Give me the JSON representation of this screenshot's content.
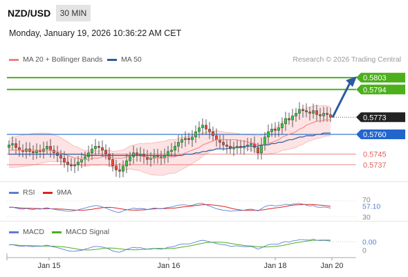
{
  "header": {
    "symbol": "NZD/USD",
    "timeframe": "30 MIN",
    "datetime": "Monday, January 19, 2026 10:36:22 AM CET",
    "source": "Research © 2026 Trading Central"
  },
  "legend": {
    "bollinger": "MA 20 + Bollinger Bands",
    "ma50": "MA 50",
    "rsi": "RSI",
    "rsi_ma": "9MA",
    "macd": "MACD",
    "macd_signal": "MACD Signal"
  },
  "colors": {
    "up": "#2ecc40",
    "down": "#e74c3c",
    "bollinger": "#f08080",
    "ma50": "#2c5aa0",
    "target": "#4caf1c",
    "pivot": "#2266cc",
    "support": "#e06060",
    "arrow": "#2c5aa0"
  },
  "chart_data": {
    "type": "candlestick",
    "x_labels": [
      "Jan 15",
      "Jan 16",
      "Jan 18",
      "Jan 20"
    ],
    "price_range": [
      0.5728,
      0.5812
    ],
    "levels": [
      {
        "value": 0.5803,
        "label": "0.5803",
        "kind": "target"
      },
      {
        "value": 0.5794,
        "label": "0.5794",
        "kind": "target"
      },
      {
        "value": 0.5773,
        "label": "0.5773",
        "kind": "last"
      },
      {
        "value": 0.576,
        "label": "0.5760",
        "kind": "pivot"
      },
      {
        "value": 0.5745,
        "label": "0.5745",
        "kind": "support"
      },
      {
        "value": 0.5737,
        "label": "0.5737",
        "kind": "support"
      }
    ],
    "close": [
      0.5752,
      0.5753,
      0.575,
      0.5748,
      0.5747,
      0.5749,
      0.5747,
      0.5746,
      0.5748,
      0.5747,
      0.5749,
      0.5751,
      0.5748,
      0.5746,
      0.5744,
      0.5742,
      0.5739,
      0.5737,
      0.5736,
      0.5737,
      0.5739,
      0.5741,
      0.5743,
      0.5746,
      0.5749,
      0.5751,
      0.575,
      0.5748,
      0.5745,
      0.5741,
      0.5736,
      0.5733,
      0.5732,
      0.5736,
      0.574,
      0.5743,
      0.5746,
      0.5744,
      0.5745,
      0.5743,
      0.5741,
      0.5742,
      0.5744,
      0.5743,
      0.5742,
      0.5744,
      0.5747,
      0.5748,
      0.5751,
      0.5754,
      0.5756,
      0.5757,
      0.5756,
      0.5758,
      0.5762,
      0.5765,
      0.5767,
      0.5764,
      0.5762,
      0.5759,
      0.5756,
      0.5754,
      0.5752,
      0.5751,
      0.5749,
      0.575,
      0.5751,
      0.575,
      0.5751,
      0.5752,
      0.5753,
      0.575,
      0.5746,
      0.5752,
      0.5758,
      0.5762,
      0.5764,
      0.5763,
      0.5765,
      0.5768,
      0.5772,
      0.5771,
      0.5774,
      0.5776,
      0.5779,
      0.5778,
      0.5777,
      0.5776,
      0.5778,
      0.5775,
      0.5774,
      0.5776,
      0.5775,
      0.5773
    ],
    "ma20": [
      0.5748,
      0.5748,
      0.5748,
      0.5748,
      0.5748,
      0.5748,
      0.5748,
      0.5748,
      0.5748,
      0.5748,
      0.5748,
      0.5748,
      0.5748,
      0.5747,
      0.5747,
      0.5746,
      0.5745,
      0.5744,
      0.5743,
      0.5742,
      0.5742,
      0.5741,
      0.5741,
      0.5741,
      0.5742,
      0.5742,
      0.5742,
      0.5743,
      0.5743,
      0.5743,
      0.5742,
      0.5742,
      0.5742,
      0.5742,
      0.5743,
      0.5744,
      0.5744,
      0.5744,
      0.5744,
      0.5743,
      0.5743,
      0.5742,
      0.5742,
      0.5742,
      0.5742,
      0.5742,
      0.5743,
      0.5743,
      0.5743,
      0.5744,
      0.5745,
      0.5746,
      0.5747,
      0.5748,
      0.5749,
      0.575,
      0.5752,
      0.5753,
      0.5754,
      0.5755,
      0.5756,
      0.5756,
      0.5756,
      0.5756,
      0.5756,
      0.5756,
      0.5756,
      0.5755,
      0.5755,
      0.5754,
      0.5754,
      0.5753,
      0.5752,
      0.5752,
      0.5752,
      0.5753,
      0.5754,
      0.5755,
      0.5756,
      0.5758,
      0.5759,
      0.576,
      0.5761,
      0.5762,
      0.5764,
      0.5765,
      0.5767,
      0.5768,
      0.5769,
      0.577,
      0.577,
      0.5771,
      0.5771,
      0.5771
    ],
    "ma50": [
      0.5745,
      0.5745,
      0.5745,
      0.5745,
      0.5745,
      0.5745,
      0.5745,
      0.5745,
      0.5745,
      0.5745,
      0.5745,
      0.5745,
      0.5745,
      0.5745,
      0.5745,
      0.5745,
      0.5745,
      0.5745,
      0.5745,
      0.5745,
      0.5745,
      0.5745,
      0.5744,
      0.5744,
      0.5744,
      0.5744,
      0.5744,
      0.5744,
      0.5744,
      0.5744,
      0.5744,
      0.5744,
      0.5744,
      0.5744,
      0.5744,
      0.5744,
      0.5744,
      0.5744,
      0.5744,
      0.5744,
      0.5744,
      0.5744,
      0.5744,
      0.5744,
      0.5744,
      0.5744,
      0.5744,
      0.5744,
      0.5744,
      0.5744,
      0.5744,
      0.5745,
      0.5745,
      0.5745,
      0.5746,
      0.5746,
      0.5747,
      0.5747,
      0.5748,
      0.5748,
      0.5749,
      0.5749,
      0.5749,
      0.5749,
      0.575,
      0.575,
      0.575,
      0.575,
      0.5751,
      0.5751,
      0.5751,
      0.5751,
      0.5751,
      0.5752,
      0.5752,
      0.5752,
      0.5753,
      0.5753,
      0.5754,
      0.5754,
      0.5755,
      0.5756,
      0.5756,
      0.5757,
      0.5758,
      0.5758,
      0.5759,
      0.5759,
      0.5759,
      0.576,
      0.576,
      0.5761,
      0.5761,
      0.5761
    ],
    "rsi": {
      "labels": [
        "70",
        "57.10",
        "30"
      ],
      "current": 57.1
    },
    "macd": {
      "labels": [
        "0.00",
        "0"
      ],
      "current": 0.0
    }
  }
}
